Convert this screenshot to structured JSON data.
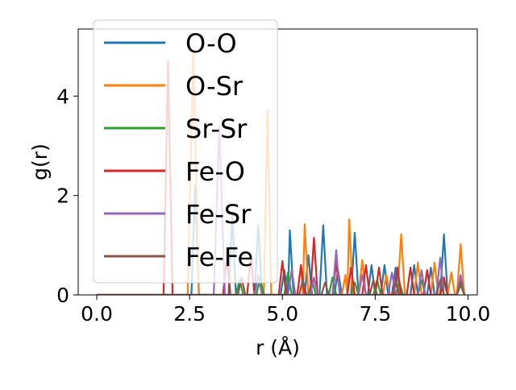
{
  "chart_data": {
    "type": "line",
    "xlabel": "r (Å)",
    "ylabel": "g(r)",
    "xlim": [
      -0.5,
      10.25
    ],
    "ylim": [
      0,
      5.35
    ],
    "xticks": [
      0.0,
      2.5,
      5.0,
      7.5,
      10.0
    ],
    "xtick_labels": [
      "0.0",
      "2.5",
      "5.0",
      "7.5",
      "10.0"
    ],
    "yticks": [
      0,
      2,
      4
    ],
    "ytick_labels": [
      "0",
      "2",
      "4"
    ],
    "grid": false,
    "legend_position": "top-left",
    "series": [
      {
        "name": "O-O",
        "color": "#1f77b4",
        "points": [
          [
            0,
            0
          ],
          [
            2.55,
            0
          ],
          [
            2.65,
            2.2
          ],
          [
            2.75,
            0
          ],
          [
            3.55,
            0
          ],
          [
            3.65,
            1.6
          ],
          [
            3.75,
            0
          ],
          [
            4.25,
            0
          ],
          [
            4.35,
            1.4
          ],
          [
            4.45,
            0
          ],
          [
            4.95,
            0
          ],
          [
            5.05,
            0.5
          ],
          [
            5.15,
            0
          ],
          [
            5.2,
            1.3
          ],
          [
            5.3,
            0
          ],
          [
            5.6,
            0
          ],
          [
            5.7,
            0.8
          ],
          [
            5.8,
            0
          ],
          [
            6.0,
            0
          ],
          [
            6.1,
            1.4
          ],
          [
            6.2,
            0
          ],
          [
            6.4,
            0
          ],
          [
            6.5,
            0.5
          ],
          [
            6.6,
            0
          ],
          [
            6.85,
            0
          ],
          [
            6.95,
            1.25
          ],
          [
            7.05,
            0
          ],
          [
            7.3,
            0
          ],
          [
            7.4,
            0.6
          ],
          [
            7.5,
            0
          ],
          [
            7.65,
            0
          ],
          [
            7.75,
            0.6
          ],
          [
            7.85,
            0
          ],
          [
            7.95,
            0
          ],
          [
            8.05,
            0.55
          ],
          [
            8.15,
            0
          ],
          [
            8.45,
            0
          ],
          [
            8.55,
            0.6
          ],
          [
            8.65,
            0
          ],
          [
            8.9,
            0
          ],
          [
            9.0,
            0.55
          ],
          [
            9.1,
            0
          ],
          [
            9.25,
            0
          ],
          [
            9.35,
            1.22
          ],
          [
            9.45,
            0
          ],
          [
            9.7,
            0
          ],
          [
            9.8,
            0.35
          ],
          [
            9.9,
            0
          ]
        ]
      },
      {
        "name": "O-Sr",
        "color": "#ff7f0e",
        "points": [
          [
            0,
            0
          ],
          [
            2.45,
            0
          ],
          [
            2.6,
            4.9
          ],
          [
            2.75,
            0
          ],
          [
            4.5,
            0
          ],
          [
            4.6,
            3.72
          ],
          [
            4.7,
            0
          ],
          [
            5.4,
            0
          ],
          [
            5.5,
            0.6
          ],
          [
            5.55,
            0
          ],
          [
            5.6,
            1.42
          ],
          [
            5.7,
            0
          ],
          [
            6.6,
            0
          ],
          [
            6.7,
            0.4
          ],
          [
            6.75,
            0
          ],
          [
            6.8,
            1.52
          ],
          [
            6.9,
            0
          ],
          [
            7.05,
            0
          ],
          [
            7.15,
            0.7
          ],
          [
            7.25,
            0
          ],
          [
            7.7,
            0
          ],
          [
            7.8,
            0.4
          ],
          [
            7.9,
            0
          ],
          [
            8.1,
            0
          ],
          [
            8.2,
            1.22
          ],
          [
            8.3,
            0
          ],
          [
            8.55,
            0
          ],
          [
            8.65,
            0.65
          ],
          [
            8.75,
            0
          ],
          [
            9.0,
            0
          ],
          [
            9.1,
            0.65
          ],
          [
            9.2,
            0
          ],
          [
            9.45,
            0
          ],
          [
            9.55,
            0.45
          ],
          [
            9.65,
            0
          ],
          [
            9.7,
            0
          ],
          [
            9.8,
            1.02
          ],
          [
            9.9,
            0
          ]
        ]
      },
      {
        "name": "Sr-Sr",
        "color": "#2ca02c",
        "points": [
          [
            0,
            0
          ],
          [
            3.75,
            0
          ],
          [
            3.85,
            0.3
          ],
          [
            3.95,
            0
          ],
          [
            4.3,
            0
          ],
          [
            4.4,
            0.35
          ],
          [
            4.5,
            0
          ],
          [
            5.05,
            0
          ],
          [
            5.15,
            0.45
          ],
          [
            5.25,
            0
          ],
          [
            5.7,
            0
          ],
          [
            5.8,
            0.3
          ],
          [
            5.9,
            0
          ],
          [
            6.25,
            0
          ],
          [
            6.35,
            0.35
          ],
          [
            6.45,
            0
          ],
          [
            6.85,
            0
          ],
          [
            6.95,
            0.25
          ],
          [
            7.05,
            0
          ],
          [
            7.45,
            0
          ],
          [
            7.55,
            0.3
          ],
          [
            7.65,
            0
          ],
          [
            8.05,
            0
          ],
          [
            8.15,
            0.25
          ],
          [
            8.25,
            0
          ],
          [
            8.65,
            0
          ],
          [
            8.75,
            0.3
          ],
          [
            8.85,
            0
          ],
          [
            9.25,
            0
          ],
          [
            9.35,
            0.25
          ],
          [
            9.45,
            0
          ],
          [
            9.7,
            0
          ],
          [
            9.8,
            0.2
          ],
          [
            9.9,
            0
          ]
        ]
      },
      {
        "name": "Fe-O",
        "color": "#d62728",
        "points": [
          [
            0,
            0
          ],
          [
            1.8,
            0
          ],
          [
            1.92,
            4.7
          ],
          [
            2.04,
            0
          ],
          [
            3.4,
            0
          ],
          [
            3.5,
            0.75
          ],
          [
            3.6,
            0
          ],
          [
            4.05,
            0
          ],
          [
            4.15,
            0.8
          ],
          [
            4.25,
            0
          ],
          [
            4.9,
            0
          ],
          [
            5.0,
            0.68
          ],
          [
            5.1,
            0
          ],
          [
            5.4,
            0
          ],
          [
            5.5,
            0.6
          ],
          [
            5.6,
            0
          ],
          [
            5.75,
            0
          ],
          [
            5.85,
            1.15
          ],
          [
            5.95,
            0
          ],
          [
            6.35,
            0
          ],
          [
            6.45,
            0.65
          ],
          [
            6.55,
            0
          ],
          [
            6.75,
            0
          ],
          [
            6.85,
            0.55
          ],
          [
            6.95,
            0
          ],
          [
            7.15,
            0
          ],
          [
            7.25,
            0.6
          ],
          [
            7.35,
            0
          ],
          [
            7.5,
            0
          ],
          [
            7.6,
            0.55
          ],
          [
            7.7,
            0
          ],
          [
            8.0,
            0
          ],
          [
            8.1,
            0.55
          ],
          [
            8.2,
            0
          ],
          [
            8.35,
            0
          ],
          [
            8.45,
            0.55
          ],
          [
            8.55,
            0
          ],
          [
            8.8,
            0
          ],
          [
            8.9,
            0.5
          ],
          [
            9.0,
            0
          ],
          [
            9.25,
            0
          ],
          [
            9.35,
            0.35
          ],
          [
            9.45,
            0
          ]
        ]
      },
      {
        "name": "Fe-Sr",
        "color": "#9467bd",
        "points": [
          [
            0,
            0
          ],
          [
            3.15,
            0
          ],
          [
            3.3,
            3.4
          ],
          [
            3.45,
            0
          ],
          [
            4.25,
            0
          ],
          [
            4.35,
            0.4
          ],
          [
            4.45,
            0
          ],
          [
            5.15,
            0
          ],
          [
            5.25,
            0.5
          ],
          [
            5.35,
            0
          ],
          [
            5.75,
            0
          ],
          [
            5.85,
            0.35
          ],
          [
            5.95,
            0
          ],
          [
            6.35,
            0
          ],
          [
            6.45,
            0.9
          ],
          [
            6.55,
            0
          ],
          [
            7.05,
            0
          ],
          [
            7.15,
            0.4
          ],
          [
            7.25,
            0
          ],
          [
            7.85,
            0
          ],
          [
            7.95,
            0.45
          ],
          [
            8.05,
            0
          ],
          [
            8.65,
            0
          ],
          [
            8.75,
            0.5
          ],
          [
            8.85,
            0
          ],
          [
            9.15,
            0
          ],
          [
            9.25,
            0.75
          ],
          [
            9.35,
            0
          ],
          [
            9.7,
            0
          ],
          [
            9.8,
            0.4
          ],
          [
            9.9,
            0
          ]
        ]
      },
      {
        "name": "Fe-Fe",
        "color": "#8c564b",
        "points": [
          [
            0,
            0
          ],
          [
            3.8,
            0
          ],
          [
            3.9,
            0.35
          ],
          [
            4.0,
            0
          ],
          [
            5.45,
            0
          ],
          [
            5.55,
            0.3
          ],
          [
            5.65,
            0
          ],
          [
            6.05,
            0
          ],
          [
            6.15,
            0.25
          ],
          [
            6.25,
            0
          ],
          [
            7.35,
            0
          ],
          [
            7.45,
            0.3
          ],
          [
            7.55,
            0
          ],
          [
            7.95,
            0
          ],
          [
            8.05,
            0.25
          ],
          [
            8.15,
            0
          ],
          [
            9.15,
            0
          ],
          [
            9.25,
            0.3
          ],
          [
            9.35,
            0
          ],
          [
            9.7,
            0
          ],
          [
            9.8,
            0.25
          ],
          [
            9.9,
            0
          ]
        ]
      }
    ]
  }
}
